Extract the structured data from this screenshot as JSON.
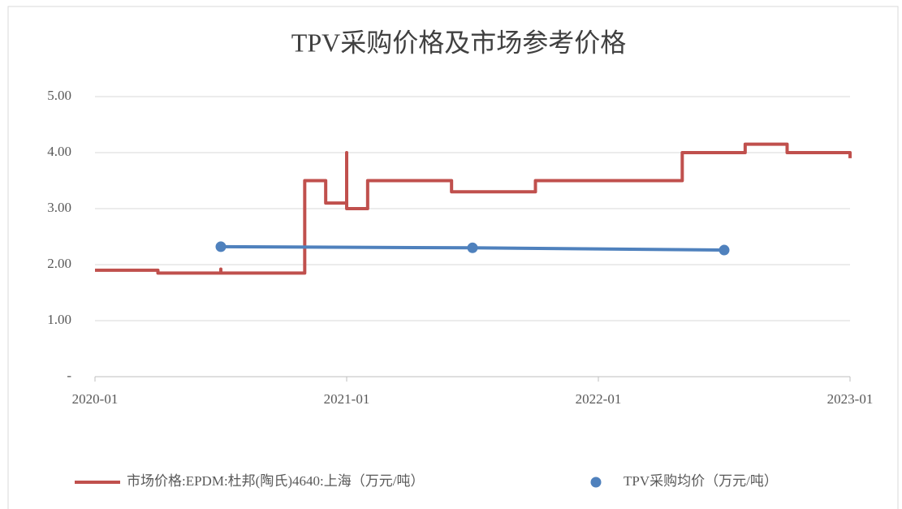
{
  "chart_data": {
    "type": "line",
    "title": "TPV采购价格及市场参考价格",
    "xlim": [
      "2020-01",
      "2023-01"
    ],
    "xticks": [
      "2020-01",
      "2021-01",
      "2022-01",
      "2023-01"
    ],
    "ylim": [
      0,
      5
    ],
    "yticks": [
      {
        "value": 0,
        "label": "-"
      },
      {
        "value": 1,
        "label": "1.00"
      },
      {
        "value": 2,
        "label": "2.00"
      },
      {
        "value": 3,
        "label": "3.00"
      },
      {
        "value": 4,
        "label": "4.00"
      },
      {
        "value": 5,
        "label": "5.00"
      }
    ],
    "grid": true,
    "legend": "bottom",
    "series": [
      {
        "name": "市场价格:EPDM:杜邦(陶氏)4640:上海（万元/吨）",
        "color": "#c0504d",
        "markers": false,
        "x": [
          "2020-01",
          "2020-04",
          "2020-04",
          "2020-07",
          "2020-07",
          "2020-07",
          "2020-11",
          "2020-11",
          "2020-12",
          "2020-12",
          "2021-01",
          "2021-01",
          "2021-01",
          "2021-02",
          "2021-02",
          "2021-06",
          "2021-06",
          "2021-10",
          "2021-10",
          "2022-05",
          "2022-05",
          "2022-08",
          "2022-08",
          "2022-10",
          "2022-10",
          "2023-01",
          "2023-01"
        ],
        "values": [
          1.9,
          1.9,
          1.85,
          1.85,
          1.92,
          1.85,
          1.85,
          3.5,
          3.5,
          3.1,
          3.1,
          4.0,
          3.0,
          3.0,
          3.5,
          3.5,
          3.3,
          3.3,
          3.5,
          3.5,
          4.0,
          4.0,
          4.15,
          4.15,
          4.0,
          4.0,
          3.9
        ]
      },
      {
        "name": "TPV采购均价（万元/吨）",
        "color": "#4f81bd",
        "markers": true,
        "x": [
          "2020-07",
          "2021-07",
          "2022-07"
        ],
        "values": [
          2.32,
          2.3,
          2.26
        ]
      }
    ]
  }
}
